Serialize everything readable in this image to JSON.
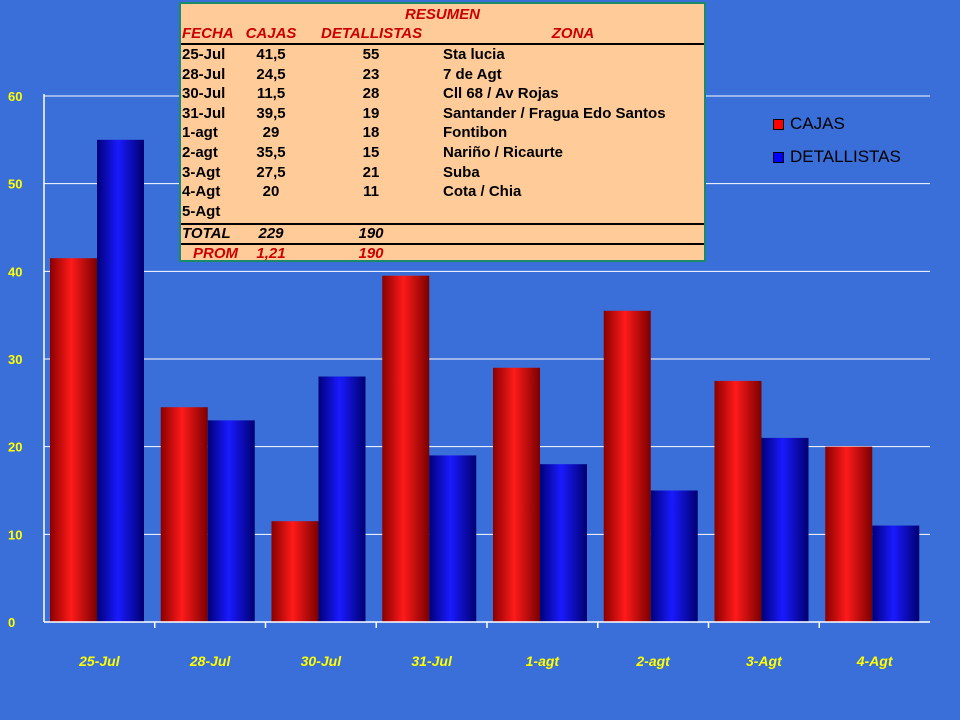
{
  "chart_data": {
    "type": "bar",
    "categories": [
      "25-Jul",
      "28-Jul",
      "30-Jul",
      "31-Jul",
      "1-agt",
      "2-agt",
      "3-Agt",
      "4-Agt"
    ],
    "series": [
      {
        "name": "CAJAS",
        "values": [
          41.5,
          24.5,
          11.5,
          39.5,
          29,
          35.5,
          27.5,
          20
        ],
        "color": "#ff0000"
      },
      {
        "name": "DETALLISTAS",
        "values": [
          55,
          23,
          28,
          19,
          18,
          15,
          21,
          11
        ],
        "color": "#0000ff"
      }
    ],
    "yticks": [
      "0",
      "10",
      "20",
      "30",
      "40",
      "50",
      "60"
    ],
    "ylim": [
      0,
      60
    ],
    "grid": true,
    "legend_position": "top-right",
    "title": "",
    "xlabel": "",
    "ylabel": ""
  },
  "summary": {
    "title": "RESUMEN",
    "headers": {
      "fecha": "FECHA",
      "cajas": "CAJAS",
      "detallistas": "DETALLISTAS",
      "zona": "ZONA"
    },
    "rows": [
      {
        "fecha": "25-Jul",
        "cajas": "41,5",
        "detallistas": "55",
        "zona": "Sta lucia"
      },
      {
        "fecha": "28-Jul",
        "cajas": "24,5",
        "detallistas": "23",
        "zona": "7 de Agt"
      },
      {
        "fecha": "30-Jul",
        "cajas": "11,5",
        "detallistas": "28",
        "zona": "Cll 68 / Av Rojas"
      },
      {
        "fecha": "31-Jul",
        "cajas": "39,5",
        "detallistas": "19",
        "zona": "Santander / Fragua Edo Santos"
      },
      {
        "fecha": "1-agt",
        "cajas": "29",
        "detallistas": "18",
        "zona": "Fontibon"
      },
      {
        "fecha": "2-agt",
        "cajas": "35,5",
        "detallistas": "15",
        "zona": "Nariño / Ricaurte"
      },
      {
        "fecha": "3-Agt",
        "cajas": "27,5",
        "detallistas": "21",
        "zona": "Suba"
      },
      {
        "fecha": "4-Agt",
        "cajas": "20",
        "detallistas": "11",
        "zona": "Cota / Chia"
      },
      {
        "fecha": "5-Agt",
        "cajas": "",
        "detallistas": "",
        "zona": ""
      }
    ],
    "total": {
      "label": "TOTAL",
      "cajas": "229",
      "detallistas": "190"
    },
    "prom": {
      "label": "PROM",
      "cajas": "1,21",
      "detallistas": "190"
    }
  },
  "legend": {
    "items": [
      {
        "label": "CAJAS",
        "color": "#ff0000"
      },
      {
        "label": "DETALLISTAS",
        "color": "#0000ff"
      }
    ]
  }
}
